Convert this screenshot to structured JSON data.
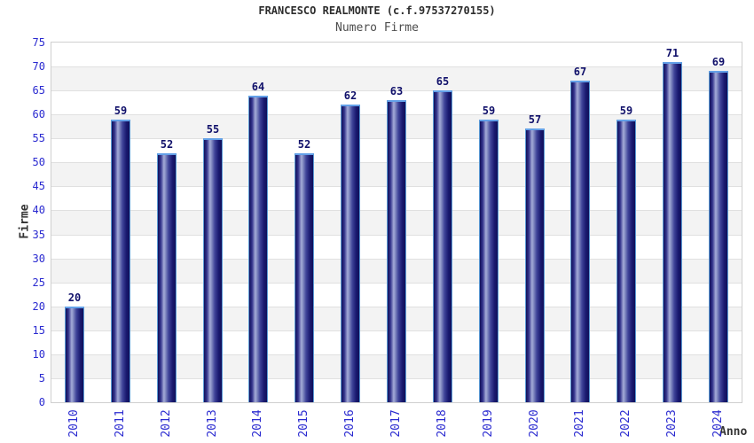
{
  "header": {
    "title": "FRANCESCO REALMONTE (c.f.97537270155)",
    "subtitle": "Numero Firme"
  },
  "chart_data": {
    "type": "bar",
    "title": "FRANCESCO REALMONTE (c.f.97537270155)",
    "subtitle": "Numero Firme",
    "xlabel": "Anno",
    "ylabel": "Firme",
    "categories": [
      "2010",
      "2011",
      "2012",
      "2013",
      "2014",
      "2015",
      "2016",
      "2017",
      "2018",
      "2019",
      "2020",
      "2021",
      "2022",
      "2023",
      "2024"
    ],
    "values": [
      20,
      59,
      52,
      55,
      64,
      52,
      62,
      63,
      65,
      59,
      57,
      67,
      59,
      71,
      69
    ],
    "ylim": [
      0,
      75
    ],
    "ytick_step": 5,
    "yticks": [
      0,
      5,
      10,
      15,
      20,
      25,
      30,
      35,
      40,
      45,
      50,
      55,
      60,
      65,
      70,
      75
    ],
    "grid": true,
    "band_alternate": true,
    "legend": "none"
  },
  "colors": {
    "tick_label_blue": "#2a2ad0",
    "value_label_navy": "#10106a",
    "bar_edge_dark": "#10105a",
    "bar_mid": "#34348c",
    "bar_highlight": "#a4abd8",
    "bar_border_light_blue": "#5b9bd5",
    "band_gray": "#f3f3f3",
    "band_white": "#ffffff",
    "gridline_gray": "#e0e0e0",
    "plot_border": "#cfcfcf",
    "title_color": "#2d2d2d",
    "subtitle_color": "#4d4d4d",
    "axis_title_color": "#333333"
  }
}
